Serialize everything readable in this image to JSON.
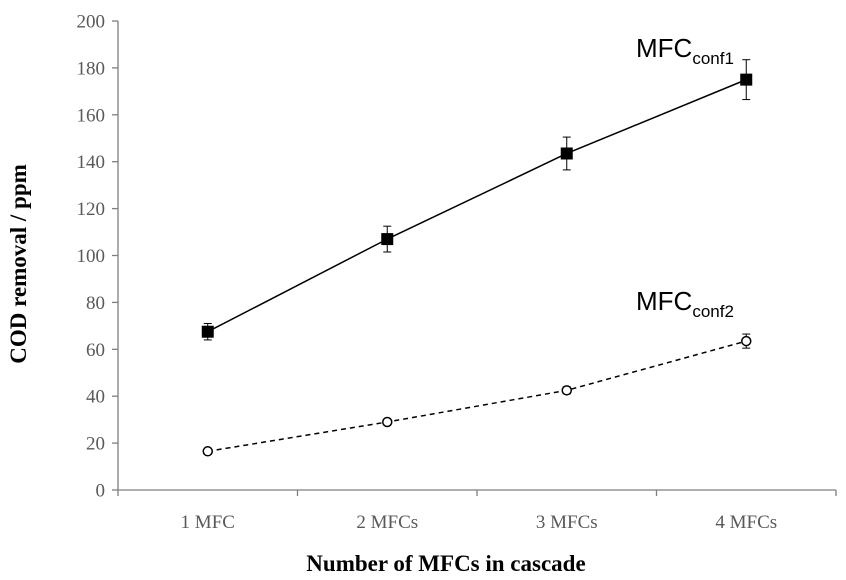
{
  "chart_data": {
    "type": "line",
    "title": "",
    "xlabel": "Number of MFCs in cascade",
    "ylabel": "COD removal / ppm",
    "categories": [
      "1 MFC",
      "2 MFCs",
      "3 MFCs",
      "4 MFCs"
    ],
    "ylim": [
      0,
      200
    ],
    "yticks": [
      0,
      20,
      40,
      60,
      80,
      100,
      120,
      140,
      160,
      180,
      200
    ],
    "grid": false,
    "legend": "none",
    "series": [
      {
        "name": "MFCconf1",
        "label_main": "MFC",
        "label_sub": "conf1",
        "values": [
          67.5,
          107,
          143.5,
          175
        ],
        "error": [
          3.5,
          5.5,
          7,
          8.5
        ],
        "marker": "filled-square",
        "line_style": "solid",
        "color": "#000000"
      },
      {
        "name": "MFCconf2",
        "label_main": "MFC",
        "label_sub": "conf2",
        "values": [
          16.5,
          29,
          42.5,
          63.5
        ],
        "error": [
          0.8,
          1.0,
          1.5,
          3.0
        ],
        "marker": "open-circle",
        "line_style": "dashed",
        "color": "#000000"
      }
    ]
  }
}
